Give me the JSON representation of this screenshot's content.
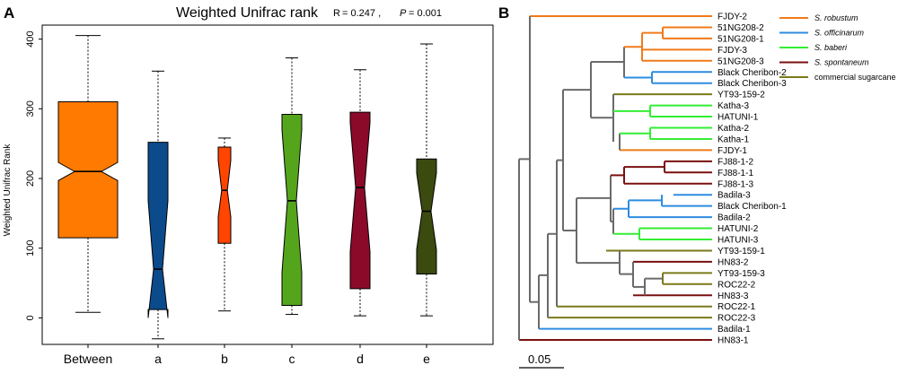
{
  "colors": {
    "orange": "#ff7a00",
    "blue": "#0b4b8c",
    "red_orange": "#ff4500",
    "green": "#55a51c",
    "crimson": "#8b0a2a",
    "olive": "#3b4a0e",
    "leg_robustum": "#f07a1a",
    "leg_officinarum": "#2f8ce0",
    "leg_baberi": "#33ee33",
    "leg_spontaneum": "#7a1010",
    "leg_commercial": "#7a7a1a",
    "tree_gray": "#6a6a6a"
  },
  "panels": {
    "a_letter": "A",
    "b_letter": "B"
  },
  "chart_data": [
    {
      "type": "boxplot",
      "title": "Weighted Unifrac rank",
      "stat_r_label": "R",
      "stat_r_value": "= 0.247 ,",
      "stat_p_label": "P",
      "stat_p_value": "= 0.001",
      "xlabel": "",
      "ylabel": "Weighted Unifrac Rank",
      "ylim": [
        -38,
        420
      ],
      "yticks": [
        "0",
        "100",
        "200",
        "300",
        "400"
      ],
      "notched": true,
      "categories": [
        "Between",
        "a",
        "b",
        "c",
        "d",
        "e"
      ],
      "boxes": [
        {
          "name": "Between",
          "color_key": "orange",
          "min": 8,
          "q1": 115,
          "median": 210,
          "q3": 310,
          "max": 405,
          "notch_lo": 197,
          "notch_hi": 223,
          "width": "wide"
        },
        {
          "name": "a",
          "color_key": "blue",
          "min": -30,
          "q1": 12,
          "median": 70,
          "q3": 252,
          "max": 354,
          "notch_lo": 0,
          "notch_hi": 168,
          "width": "normal"
        },
        {
          "name": "b",
          "color_key": "red_orange",
          "min": 10,
          "q1": 107,
          "median": 183,
          "q3": 245,
          "max": 258,
          "notch_lo": 145,
          "notch_hi": 226,
          "width": "narrow"
        },
        {
          "name": "c",
          "color_key": "green",
          "min": 5,
          "q1": 18,
          "median": 168,
          "q3": 292,
          "max": 373,
          "notch_lo": 65,
          "notch_hi": 270,
          "width": "normal"
        },
        {
          "name": "d",
          "color_key": "crimson",
          "min": 3,
          "q1": 42,
          "median": 187,
          "q3": 295,
          "max": 356,
          "notch_lo": 95,
          "notch_hi": 280,
          "width": "normal"
        },
        {
          "name": "e",
          "color_key": "olive",
          "min": 3,
          "q1": 63,
          "median": 153,
          "q3": 228,
          "max": 393,
          "notch_lo": 98,
          "notch_hi": 208,
          "width": "normal"
        }
      ]
    },
    {
      "type": "dendrogram",
      "title": "",
      "scale_bar_label": "0.05",
      "scale_bar_value": 0.05,
      "legend": [
        {
          "label": "S. robustum",
          "italic": true,
          "color_key": "leg_robustum"
        },
        {
          "label": "S. officinarum",
          "italic": true,
          "color_key": "leg_officinarum"
        },
        {
          "label": "S. baberi",
          "italic": true,
          "color_key": "leg_baberi"
        },
        {
          "label": "S. spontaneum",
          "italic": true,
          "color_key": "leg_spontaneum"
        },
        {
          "label": "commercial sugarcane",
          "italic": false,
          "color_key": "leg_commercial"
        }
      ],
      "leaves": [
        {
          "label": "FJDY-2",
          "color_key": "leg_robustum"
        },
        {
          "label": "51NG208-2",
          "color_key": "leg_robustum"
        },
        {
          "label": "51NG208-1",
          "color_key": "leg_robustum"
        },
        {
          "label": "FJDY-3",
          "color_key": "leg_robustum"
        },
        {
          "label": "51NG208-3",
          "color_key": "leg_robustum"
        },
        {
          "label": "Black Cheribon-2",
          "color_key": "leg_officinarum"
        },
        {
          "label": "Black Cheribon-3",
          "color_key": "leg_officinarum"
        },
        {
          "label": "YT93-159-2",
          "color_key": "leg_commercial"
        },
        {
          "label": "Katha-3",
          "color_key": "leg_baberi"
        },
        {
          "label": "HATUNI-1",
          "color_key": "leg_baberi"
        },
        {
          "label": "Katha-2",
          "color_key": "leg_baberi"
        },
        {
          "label": "Katha-1",
          "color_key": "leg_baberi"
        },
        {
          "label": "FJDY-1",
          "color_key": "leg_robustum"
        },
        {
          "label": "FJ88-1-2",
          "color_key": "leg_spontaneum"
        },
        {
          "label": "FJ88-1-1",
          "color_key": "leg_spontaneum"
        },
        {
          "label": "FJ88-1-3",
          "color_key": "leg_spontaneum"
        },
        {
          "label": "Badila-3",
          "color_key": "leg_officinarum"
        },
        {
          "label": "Black Cheribon-1",
          "color_key": "leg_officinarum"
        },
        {
          "label": "Badila-2",
          "color_key": "leg_officinarum"
        },
        {
          "label": "HATUNI-2",
          "color_key": "leg_baberi"
        },
        {
          "label": "HATUNI-3",
          "color_key": "leg_baberi"
        },
        {
          "label": "YT93-159-1",
          "color_key": "leg_commercial"
        },
        {
          "label": "HN83-2",
          "color_key": "leg_spontaneum"
        },
        {
          "label": "YT93-159-3",
          "color_key": "leg_commercial"
        },
        {
          "label": "ROC22-2",
          "color_key": "leg_commercial"
        },
        {
          "label": "HN83-3",
          "color_key": "leg_spontaneum"
        },
        {
          "label": "ROC22-1",
          "color_key": "leg_commercial"
        },
        {
          "label": "ROC22-3",
          "color_key": "leg_commercial"
        },
        {
          "label": "Badila-1",
          "color_key": "leg_officinarum"
        },
        {
          "label": "HN83-1",
          "color_key": "leg_spontaneum"
        }
      ]
    }
  ]
}
